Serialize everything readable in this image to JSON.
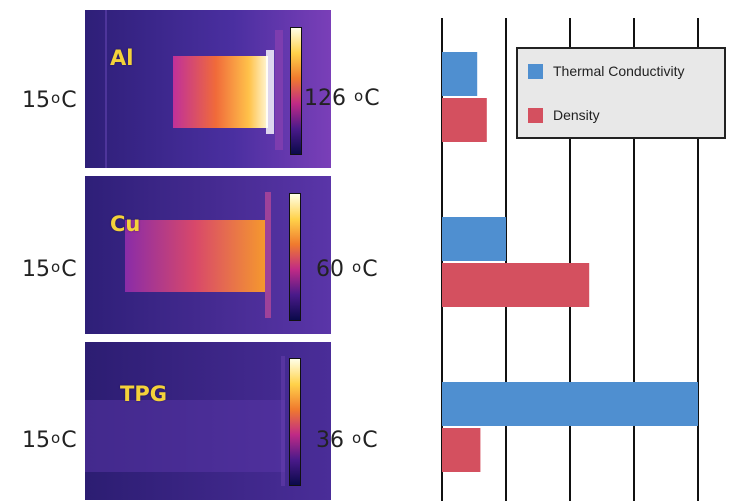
{
  "thermal_images": [
    {
      "metal": "Al",
      "min_temp": "15",
      "max_temp": "126",
      "unit": "C"
    },
    {
      "metal": "Cu",
      "min_temp": "15",
      "max_temp": "60",
      "unit": "C"
    },
    {
      "metal": "TPG",
      "min_temp": "15",
      "max_temp": "36",
      "unit": "C"
    }
  ],
  "chart_data": {
    "type": "bar",
    "orientation": "horizontal",
    "categories": [
      "Al",
      "Cu",
      "TPG"
    ],
    "series": [
      {
        "name": "Thermal Conductivity",
        "color": "#4f8fd0",
        "values": [
          0.55,
          1.0,
          4.0
        ]
      },
      {
        "name": "Density",
        "color": "#d4505f",
        "values": [
          0.7,
          2.3,
          0.6
        ]
      }
    ],
    "xlim": [
      0,
      4.5
    ],
    "grid": true,
    "legend_position": "top-right",
    "title": "",
    "xlabel": "",
    "ylabel": ""
  }
}
